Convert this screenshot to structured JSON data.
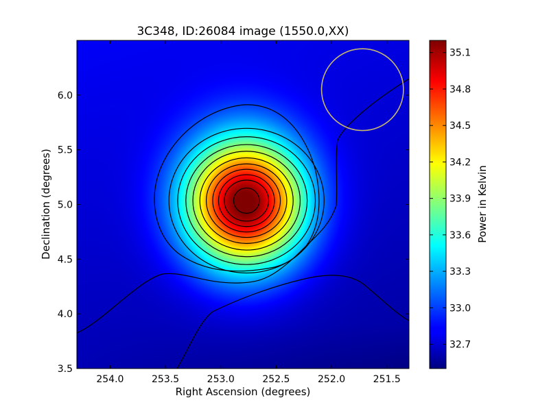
{
  "chart_data": {
    "type": "heatmap",
    "title": "3C348, ID:26084 image (1550.0,XX)",
    "xlabel": "Right Ascension (degrees)",
    "ylabel": "Declination (degrees)",
    "colorbar_label": "Power in Kelvin",
    "xlim": [
      254.3,
      251.3
    ],
    "ylim": [
      3.5,
      6.5
    ],
    "x_ticks": [
      254.0,
      253.5,
      253.0,
      252.5,
      252.0,
      251.5
    ],
    "x_tick_labels": [
      "254.0",
      "253.5",
      "253.0",
      "252.5",
      "252.0",
      "251.5"
    ],
    "y_ticks": [
      3.5,
      4.0,
      4.5,
      5.0,
      5.5,
      6.0
    ],
    "y_tick_labels": [
      "3.5",
      "4.0",
      "4.5",
      "5.0",
      "5.5",
      "6.0"
    ],
    "colorbar_range": [
      32.5,
      35.2
    ],
    "colorbar_ticks": [
      32.7,
      33.0,
      33.3,
      33.6,
      33.9,
      34.2,
      34.5,
      34.8,
      35.1
    ],
    "colorbar_tick_labels": [
      "32.7",
      "33.0",
      "33.3",
      "33.6",
      "33.9",
      "34.2",
      "34.5",
      "34.8",
      "35.1"
    ],
    "colormap": "jet",
    "peak": {
      "ra": 252.78,
      "dec": 5.01,
      "value": 35.15
    },
    "contour_color": "#000000",
    "beam_circle": {
      "ra": 251.72,
      "dec": 6.05,
      "radius_deg": 0.37,
      "color": "#c8b86e"
    }
  }
}
